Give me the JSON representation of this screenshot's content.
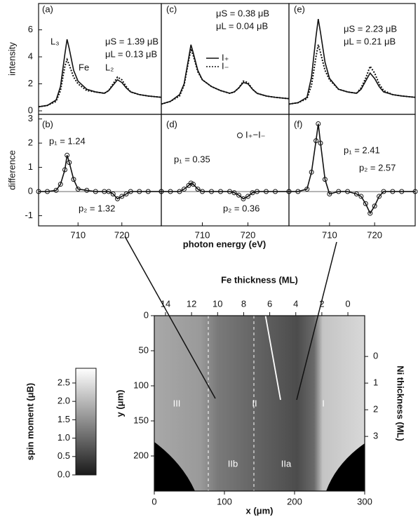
{
  "chart_data": [
    {
      "type": "line",
      "ylabel": "intensity",
      "xlim": [
        701,
        729
      ],
      "ylim": [
        -0.26,
        7.95
      ],
      "yticks": [
        0,
        2,
        4,
        6
      ],
      "x": [
        701,
        703,
        705,
        706,
        707,
        707.5,
        708,
        709,
        710,
        712,
        714,
        716,
        717,
        718,
        719,
        720,
        721,
        722,
        724,
        726,
        729
      ],
      "series": [
        {
          "color": "#111111",
          "style": "solid",
          "values": [
            0.3,
            0.4,
            0.8,
            1.8,
            4.2,
            5.3,
            4.6,
            3.0,
            2.2,
            1.6,
            1.4,
            1.3,
            1.5,
            1.9,
            2.3,
            2.1,
            1.7,
            1.4,
            1.2,
            1.1,
            1.0
          ]
        },
        {
          "color": "#111111",
          "style": "dotted",
          "values": [
            0.3,
            0.4,
            0.7,
            1.5,
            3.3,
            3.8,
            3.4,
            2.5,
            2.0,
            1.5,
            1.4,
            1.3,
            1.5,
            2.0,
            2.5,
            2.3,
            1.8,
            1.4,
            1.2,
            1.1,
            1.0
          ]
        }
      ],
      "annotations": [
        "(a)",
        "L₃",
        "Fe",
        "L₂",
        "μS = 1.39 μB",
        "μL = 0.13 μB"
      ]
    },
    {
      "type": "line",
      "xlim": [
        701,
        729
      ],
      "ylim": [
        -0.26,
        7.95
      ],
      "x": [
        701,
        703,
        705,
        706,
        707,
        707.5,
        708,
        709,
        710,
        712,
        714,
        716,
        717,
        718,
        719,
        720,
        721,
        722,
        724,
        726,
        729
      ],
      "series": [
        {
          "name": "I₊",
          "color": "#111111",
          "style": "solid",
          "values": [
            0.5,
            0.7,
            1.2,
            2.0,
            3.9,
            4.9,
            4.3,
            3.0,
            2.3,
            1.8,
            1.5,
            1.3,
            1.4,
            1.7,
            2.1,
            2.0,
            1.6,
            1.3,
            1.1,
            1.0,
            0.9
          ]
        },
        {
          "name": "I₋",
          "color": "#111111",
          "style": "dotted",
          "values": [
            0.5,
            0.7,
            1.1,
            1.9,
            3.7,
            4.6,
            4.1,
            2.9,
            2.3,
            1.8,
            1.5,
            1.3,
            1.4,
            1.7,
            2.2,
            2.1,
            1.6,
            1.3,
            1.1,
            1.0,
            0.9
          ]
        }
      ],
      "annotations": [
        "(c)",
        "μS = 0.38 μB",
        "μL = 0.04 μB"
      ]
    },
    {
      "type": "line",
      "xlim": [
        701,
        729
      ],
      "ylim": [
        -0.26,
        7.95
      ],
      "x": [
        701,
        703,
        705,
        706,
        707,
        707.5,
        708,
        709,
        710,
        712,
        714,
        716,
        717,
        718,
        719,
        720,
        721,
        722,
        724,
        726,
        729
      ],
      "series": [
        {
          "color": "#111111",
          "style": "solid",
          "values": [
            0.5,
            0.6,
            1.0,
            2.5,
            5.5,
            6.8,
            5.8,
            3.6,
            2.4,
            1.6,
            1.4,
            1.3,
            1.6,
            2.2,
            2.8,
            2.4,
            1.8,
            1.4,
            1.2,
            1.1,
            1.0
          ]
        },
        {
          "color": "#111111",
          "style": "dotted",
          "values": [
            0.5,
            0.6,
            0.9,
            1.9,
            4.0,
            4.9,
            4.3,
            3.0,
            2.3,
            1.6,
            1.4,
            1.3,
            1.7,
            2.4,
            3.3,
            2.8,
            2.0,
            1.5,
            1.2,
            1.1,
            1.0
          ]
        }
      ],
      "annotations": [
        "(e)",
        "μS = 2.23 μB",
        "μL = 0.21 μB"
      ]
    },
    {
      "type": "scatter",
      "ylabel": "difference",
      "xlim": [
        701,
        729
      ],
      "ylim": [
        -1.42,
        3.19
      ],
      "yticks": [
        -1,
        0,
        1,
        2,
        3
      ],
      "xticks": [
        710,
        720
      ],
      "x": [
        701,
        703,
        705,
        706,
        707,
        707.5,
        708,
        709,
        710,
        712,
        714,
        716,
        717,
        718,
        719,
        720,
        721,
        722,
        724,
        726,
        729
      ],
      "series": [
        {
          "color": "#111111",
          "values": [
            0,
            0,
            0.05,
            0.3,
            0.9,
            1.5,
            1.2,
            0.5,
            0.1,
            0.05,
            0,
            0,
            0,
            -0.1,
            -0.3,
            -0.2,
            -0.1,
            0,
            0,
            0,
            0
          ]
        }
      ],
      "annotations": [
        "(b)",
        "p₁ = 1.24",
        "p₂ = 1.32"
      ]
    },
    {
      "type": "scatter",
      "xlabel": "photon energy (eV)",
      "xlim": [
        701,
        729
      ],
      "ylim": [
        -1.42,
        3.19
      ],
      "xticks": [
        710,
        720
      ],
      "x": [
        701,
        703,
        705,
        706,
        707,
        707.5,
        708,
        709,
        710,
        712,
        714,
        716,
        717,
        718,
        719,
        720,
        721,
        722,
        724,
        726,
        729
      ],
      "series": [
        {
          "name": "I₊−I₋",
          "color": "#111111",
          "values": [
            0,
            0,
            0,
            0.1,
            0.25,
            0.35,
            0.3,
            0.1,
            0,
            0,
            0,
            0,
            -0.05,
            -0.15,
            -0.3,
            -0.2,
            -0.05,
            0,
            0,
            0,
            0
          ]
        }
      ],
      "annotations": [
        "(d)",
        "p₁ = 0.35",
        "p₂ = 0.36"
      ]
    },
    {
      "type": "scatter",
      "xlim": [
        701,
        729
      ],
      "ylim": [
        -1.42,
        3.19
      ],
      "xticks": [
        710,
        720
      ],
      "x": [
        701,
        703,
        705,
        706,
        707,
        707.5,
        708,
        709,
        710,
        712,
        714,
        716,
        717,
        718,
        719,
        720,
        721,
        722,
        724,
        726,
        729
      ],
      "series": [
        {
          "color": "#111111",
          "values": [
            0,
            0,
            0.1,
            0.8,
            2.1,
            2.8,
            2.0,
            0.5,
            -0.1,
            0,
            0,
            -0.1,
            -0.2,
            -0.5,
            -0.9,
            -0.6,
            -0.2,
            0,
            0,
            0,
            0
          ]
        }
      ],
      "annotations": [
        "(f)",
        "p₁ = 2.41",
        "p₂ = 2.57"
      ]
    },
    {
      "type": "heatmap",
      "xlabel": "x (μm)",
      "ylabel": "y (μm)",
      "x2label": "Fe thickness  (ML)",
      "y2label": "Ni thickness  (ML)",
      "xlim": [
        0,
        300
      ],
      "xticks": [
        0,
        100,
        200,
        300
      ],
      "ylim": [
        0,
        250
      ],
      "yticks": [
        0,
        50,
        100,
        150,
        200
      ],
      "x2lim": [
        14.86,
        -1.29
      ],
      "x2ticks": [
        14,
        12,
        10,
        8,
        6,
        4,
        2,
        0
      ],
      "y2lim": [
        -1.53,
        5.05
      ],
      "y2ticks": [
        0,
        1,
        2,
        3
      ],
      "colorbar_label": "spin moment (μB)",
      "clim": [
        0,
        2.9
      ],
      "cticks": [
        {
          "value": 0,
          "label": "0.0"
        },
        {
          "value": 0.5,
          "label": "0.5"
        },
        {
          "value": 1,
          "label": "1.0"
        },
        {
          "value": 1.5,
          "label": "1.5"
        },
        {
          "value": 2,
          "label": "2.0"
        },
        {
          "value": 2.5,
          "label": "2.5"
        }
      ],
      "regions": [
        "III",
        "II",
        "I",
        "IIb",
        "IIa"
      ]
    }
  ]
}
